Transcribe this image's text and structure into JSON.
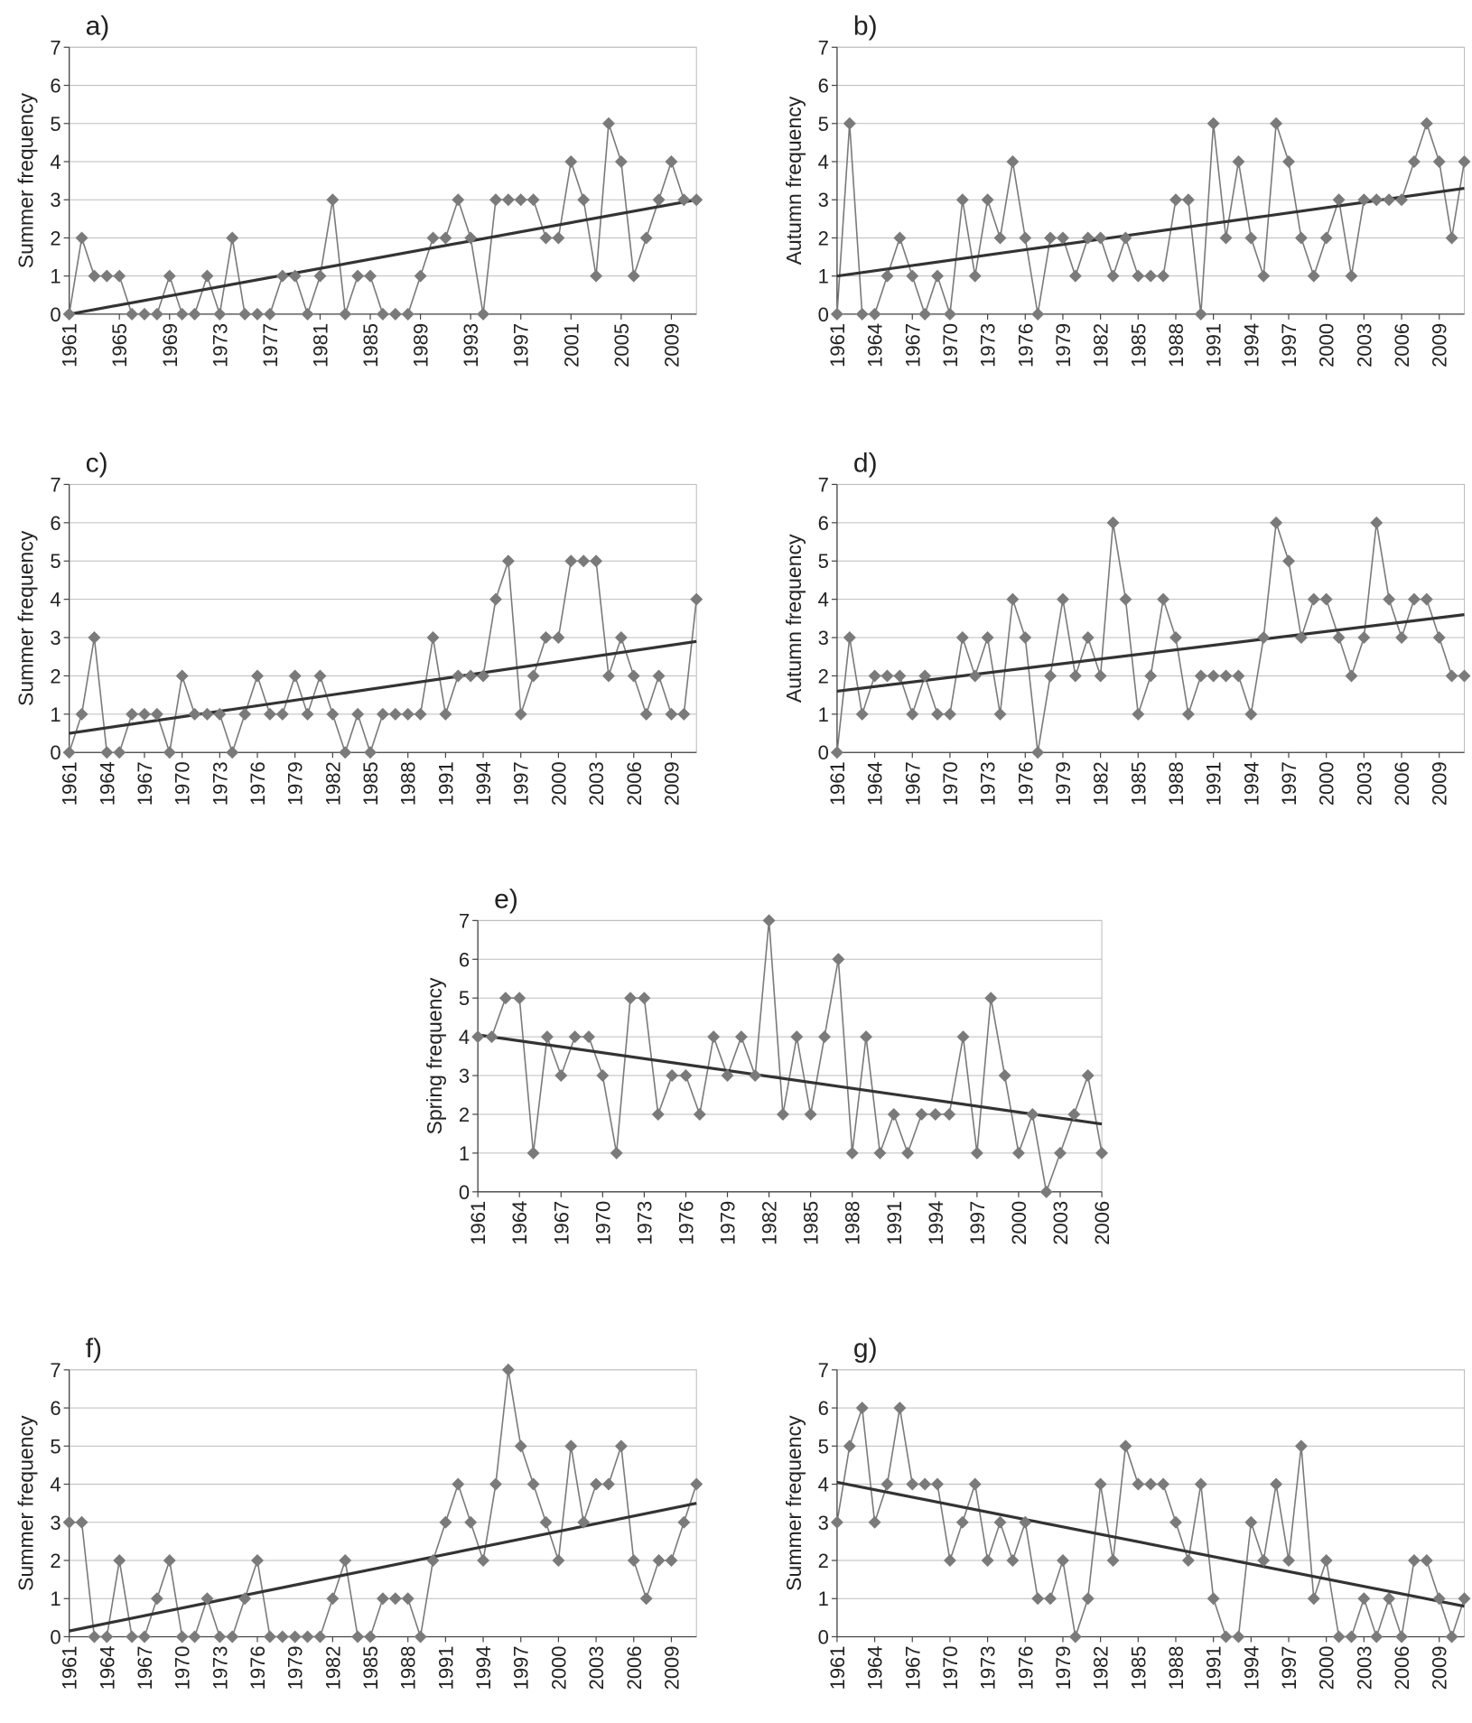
{
  "chart_data": [
    {
      "type": "line",
      "label": "a)",
      "y_label": "Summer frequency",
      "color": "#7a7a7a",
      "grid": true,
      "x": [
        1961,
        1962,
        1963,
        1964,
        1965,
        1966,
        1967,
        1968,
        1969,
        1970,
        1971,
        1972,
        1973,
        1974,
        1975,
        1976,
        1977,
        1978,
        1979,
        1980,
        1981,
        1982,
        1983,
        1984,
        1985,
        1986,
        1987,
        1988,
        1989,
        1990,
        1991,
        1992,
        1993,
        1994,
        1995,
        1996,
        1997,
        1998,
        1999,
        2000,
        2001,
        2002,
        2003,
        2004,
        2005,
        2006,
        2007,
        2008,
        2009,
        2010,
        2011
      ],
      "values": [
        0,
        2,
        1,
        1,
        1,
        0,
        0,
        0,
        1,
        0,
        0,
        1,
        0,
        2,
        0,
        0,
        0,
        1,
        1,
        0,
        1,
        3,
        0,
        1,
        1,
        0,
        0,
        0,
        1,
        2,
        2,
        3,
        2,
        0,
        3,
        3,
        3,
        3,
        2,
        2,
        4,
        3,
        1,
        5,
        4,
        1,
        2,
        3,
        4,
        3,
        3
      ],
      "trend": {
        "x": [
          1961,
          2011
        ],
        "values": [
          0,
          3
        ],
        "color": "#333333"
      },
      "xlim": [
        1961,
        2011
      ],
      "ylim": [
        0,
        7
      ],
      "yticks": [
        0,
        1,
        2,
        3,
        4,
        5,
        6,
        7
      ],
      "xticks": [
        1961,
        1965,
        1969,
        1973,
        1977,
        1981,
        1985,
        1989,
        1993,
        1997,
        2001,
        2005,
        2009
      ]
    },
    {
      "type": "line",
      "label": "b)",
      "y_label": "Autumn frequency",
      "color": "#7a7a7a",
      "grid": true,
      "x": [
        1961,
        1962,
        1963,
        1964,
        1965,
        1966,
        1967,
        1968,
        1969,
        1970,
        1971,
        1972,
        1973,
        1974,
        1975,
        1976,
        1977,
        1978,
        1979,
        1980,
        1981,
        1982,
        1983,
        1984,
        1985,
        1986,
        1987,
        1988,
        1989,
        1990,
        1991,
        1992,
        1993,
        1994,
        1995,
        1996,
        1997,
        1998,
        1999,
        2000,
        2001,
        2002,
        2003,
        2004,
        2005,
        2006,
        2007,
        2008,
        2009,
        2010,
        2011
      ],
      "values": [
        0,
        5,
        0,
        0,
        1,
        2,
        1,
        0,
        1,
        0,
        3,
        1,
        3,
        2,
        4,
        2,
        0,
        2,
        2,
        1,
        2,
        2,
        1,
        2,
        1,
        1,
        1,
        3,
        3,
        0,
        5,
        2,
        4,
        2,
        1,
        5,
        4,
        2,
        1,
        2,
        3,
        1,
        3,
        3,
        3,
        3,
        4,
        5,
        4,
        2,
        4
      ],
      "trend": {
        "x": [
          1961,
          2011
        ],
        "values": [
          1,
          3.3
        ],
        "color": "#333333"
      },
      "xlim": [
        1961,
        2011
      ],
      "ylim": [
        0,
        7
      ],
      "yticks": [
        0,
        1,
        2,
        3,
        4,
        5,
        6,
        7
      ],
      "xticks": [
        1961,
        1964,
        1967,
        1970,
        1973,
        1976,
        1979,
        1982,
        1985,
        1988,
        1991,
        1994,
        1997,
        2000,
        2003,
        2006,
        2009
      ]
    },
    {
      "type": "line",
      "label": "c)",
      "y_label": "Summer frequency",
      "color": "#7a7a7a",
      "grid": true,
      "x": [
        1961,
        1962,
        1963,
        1964,
        1965,
        1966,
        1967,
        1968,
        1969,
        1970,
        1971,
        1972,
        1973,
        1974,
        1975,
        1976,
        1977,
        1978,
        1979,
        1980,
        1981,
        1982,
        1983,
        1984,
        1985,
        1986,
        1987,
        1988,
        1989,
        1990,
        1991,
        1992,
        1993,
        1994,
        1995,
        1996,
        1997,
        1998,
        1999,
        2000,
        2001,
        2002,
        2003,
        2004,
        2005,
        2006,
        2007,
        2008,
        2009,
        2010,
        2011
      ],
      "values": [
        0,
        1,
        3,
        0,
        0,
        1,
        1,
        1,
        0,
        2,
        1,
        1,
        1,
        0,
        1,
        2,
        1,
        1,
        2,
        1,
        2,
        1,
        0,
        1,
        0,
        1,
        1,
        1,
        1,
        3,
        1,
        2,
        2,
        2,
        4,
        5,
        1,
        2,
        3,
        3,
        5,
        5,
        5,
        2,
        3,
        2,
        1,
        2,
        1,
        1,
        4
      ],
      "trend": {
        "x": [
          1961,
          2011
        ],
        "values": [
          0.5,
          2.9
        ],
        "color": "#333333"
      },
      "xlim": [
        1961,
        2011
      ],
      "ylim": [
        0,
        7
      ],
      "yticks": [
        0,
        1,
        2,
        3,
        4,
        5,
        6,
        7
      ],
      "xticks": [
        1961,
        1964,
        1967,
        1970,
        1973,
        1976,
        1979,
        1982,
        1985,
        1988,
        1991,
        1994,
        1997,
        2000,
        2003,
        2006,
        2009
      ]
    },
    {
      "type": "line",
      "label": "d)",
      "y_label": "Autumn frequency",
      "color": "#7a7a7a",
      "grid": true,
      "x": [
        1961,
        1962,
        1963,
        1964,
        1965,
        1966,
        1967,
        1968,
        1969,
        1970,
        1971,
        1972,
        1973,
        1974,
        1975,
        1976,
        1977,
        1978,
        1979,
        1980,
        1981,
        1982,
        1983,
        1984,
        1985,
        1986,
        1987,
        1988,
        1989,
        1990,
        1991,
        1992,
        1993,
        1994,
        1995,
        1996,
        1997,
        1998,
        1999,
        2000,
        2001,
        2002,
        2003,
        2004,
        2005,
        2006,
        2007,
        2008,
        2009,
        2010,
        2011
      ],
      "values": [
        0,
        3,
        1,
        2,
        2,
        2,
        1,
        2,
        1,
        1,
        3,
        2,
        3,
        1,
        4,
        3,
        0,
        2,
        4,
        2,
        3,
        2,
        6,
        4,
        1,
        2,
        4,
        3,
        1,
        2,
        2,
        2,
        2,
        1,
        3,
        6,
        5,
        3,
        4,
        4,
        3,
        2,
        3,
        6,
        4,
        3,
        4,
        4,
        3,
        2,
        2
      ],
      "trend": {
        "x": [
          1961,
          2011
        ],
        "values": [
          1.6,
          3.6
        ],
        "color": "#333333"
      },
      "xlim": [
        1961,
        2011
      ],
      "ylim": [
        0,
        7
      ],
      "yticks": [
        0,
        1,
        2,
        3,
        4,
        5,
        6,
        7
      ],
      "xticks": [
        1961,
        1964,
        1967,
        1970,
        1973,
        1976,
        1979,
        1982,
        1985,
        1988,
        1991,
        1994,
        1997,
        2000,
        2003,
        2006,
        2009
      ]
    },
    {
      "type": "line",
      "label": "e)",
      "y_label": "Spring frequency",
      "color": "#7a7a7a",
      "grid": true,
      "x": [
        1961,
        1962,
        1963,
        1964,
        1965,
        1966,
        1967,
        1968,
        1969,
        1970,
        1971,
        1972,
        1973,
        1974,
        1975,
        1976,
        1977,
        1978,
        1979,
        1980,
        1981,
        1982,
        1983,
        1984,
        1985,
        1986,
        1987,
        1988,
        1989,
        1990,
        1991,
        1992,
        1993,
        1994,
        1995,
        1996,
        1997,
        1998,
        1999,
        2000,
        2001,
        2002,
        2003,
        2004,
        2005,
        2006
      ],
      "values": [
        4,
        4,
        5,
        5,
        1,
        4,
        3,
        4,
        4,
        3,
        1,
        5,
        5,
        2,
        3,
        3,
        2,
        4,
        3,
        4,
        3,
        7,
        2,
        4,
        2,
        4,
        6,
        1,
        4,
        1,
        2,
        1,
        2,
        2,
        2,
        4,
        1,
        5,
        3,
        1,
        2,
        0,
        1,
        2,
        3,
        1
      ],
      "trend": {
        "x": [
          1961,
          2006
        ],
        "values": [
          4.05,
          1.75
        ],
        "color": "#333333"
      },
      "xlim": [
        1961,
        2006
      ],
      "ylim": [
        0,
        7
      ],
      "yticks": [
        0,
        1,
        2,
        3,
        4,
        5,
        6,
        7
      ],
      "xticks": [
        1961,
        1964,
        1967,
        1970,
        1973,
        1976,
        1979,
        1982,
        1985,
        1988,
        1991,
        1994,
        1997,
        2000,
        2003,
        2006
      ]
    },
    {
      "type": "line",
      "label": "f)",
      "y_label": "Summer frequency",
      "color": "#7a7a7a",
      "grid": true,
      "x": [
        1961,
        1962,
        1963,
        1964,
        1965,
        1966,
        1967,
        1968,
        1969,
        1970,
        1971,
        1972,
        1973,
        1974,
        1975,
        1976,
        1977,
        1978,
        1979,
        1980,
        1981,
        1982,
        1983,
        1984,
        1985,
        1986,
        1987,
        1988,
        1989,
        1990,
        1991,
        1992,
        1993,
        1994,
        1995,
        1996,
        1997,
        1998,
        1999,
        2000,
        2001,
        2002,
        2003,
        2004,
        2005,
        2006,
        2007,
        2008,
        2009,
        2010,
        2011
      ],
      "values": [
        3,
        3,
        0,
        0,
        2,
        0,
        0,
        1,
        2,
        0,
        0,
        1,
        0,
        0,
        1,
        2,
        0,
        0,
        0,
        0,
        0,
        1,
        2,
        0,
        0,
        1,
        1,
        1,
        0,
        2,
        3,
        4,
        3,
        2,
        4,
        7,
        5,
        4,
        3,
        2,
        5,
        3,
        4,
        4,
        5,
        2,
        1,
        2,
        2,
        3,
        4
      ],
      "trend": {
        "x": [
          1961,
          2011
        ],
        "values": [
          0.15,
          3.5
        ],
        "color": "#333333"
      },
      "xlim": [
        1961,
        2011
      ],
      "ylim": [
        0,
        7
      ],
      "yticks": [
        0,
        1,
        2,
        3,
        4,
        5,
        6,
        7
      ],
      "xticks": [
        1961,
        1964,
        1967,
        1970,
        1973,
        1976,
        1979,
        1982,
        1985,
        1988,
        1991,
        1994,
        1997,
        2000,
        2003,
        2006,
        2009
      ]
    },
    {
      "type": "line",
      "label": "g)",
      "y_label": "Summer frequency",
      "color": "#7a7a7a",
      "grid": true,
      "x": [
        1961,
        1962,
        1963,
        1964,
        1965,
        1966,
        1967,
        1968,
        1969,
        1970,
        1971,
        1972,
        1973,
        1974,
        1975,
        1976,
        1977,
        1978,
        1979,
        1980,
        1981,
        1982,
        1983,
        1984,
        1985,
        1986,
        1987,
        1988,
        1989,
        1990,
        1991,
        1992,
        1993,
        1994,
        1995,
        1996,
        1997,
        1998,
        1999,
        2000,
        2001,
        2002,
        2003,
        2004,
        2005,
        2006,
        2007,
        2008,
        2009,
        2010,
        2011
      ],
      "values": [
        3,
        5,
        6,
        3,
        4,
        6,
        4,
        4,
        4,
        2,
        3,
        4,
        2,
        3,
        2,
        3,
        1,
        1,
        2,
        0,
        1,
        4,
        2,
        5,
        4,
        4,
        4,
        3,
        2,
        4,
        1,
        0,
        0,
        3,
        2,
        4,
        2,
        5,
        1,
        2,
        0,
        0,
        1,
        0,
        1,
        0,
        2,
        2,
        1,
        0,
        1
      ],
      "trend": {
        "x": [
          1961,
          2011
        ],
        "values": [
          4.05,
          0.8
        ],
        "color": "#333333"
      },
      "xlim": [
        1961,
        2011
      ],
      "ylim": [
        0,
        7
      ],
      "yticks": [
        0,
        1,
        2,
        3,
        4,
        5,
        6,
        7
      ],
      "xticks": [
        1961,
        1964,
        1967,
        1970,
        1973,
        1976,
        1979,
        1982,
        1985,
        1988,
        1991,
        1994,
        1997,
        2000,
        2003,
        2006,
        2009
      ]
    }
  ]
}
